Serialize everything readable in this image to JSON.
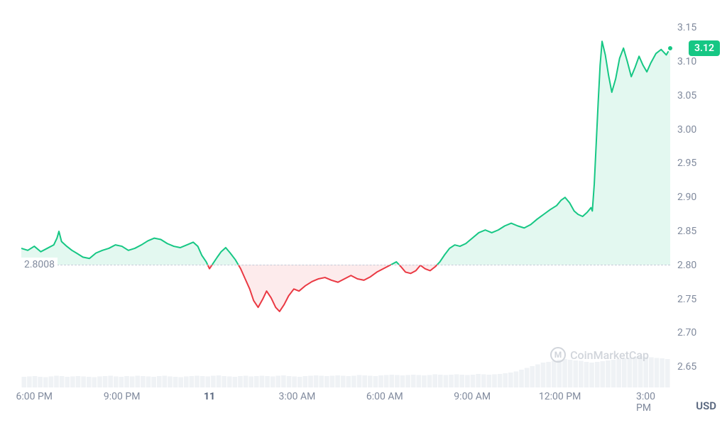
{
  "chart": {
    "type": "line",
    "baseline_value": 2.8008,
    "baseline_label": "2.8008",
    "current_value": 3.12,
    "current_label": "3.12",
    "y_axis": {
      "min": 2.62,
      "max": 3.17,
      "ticks": [
        2.65,
        2.7,
        2.75,
        2.8,
        2.85,
        2.9,
        2.95,
        3.0,
        3.05,
        3.1,
        3.15
      ],
      "labels": [
        "2.65",
        "2.70",
        "2.75",
        "2.80",
        "2.85",
        "2.90",
        "2.95",
        "3.00",
        "3.05",
        "3.10",
        "3.15"
      ]
    },
    "x_axis": {
      "labels": [
        "6:00 PM",
        "9:00 PM",
        "11",
        "3:00 AM",
        "6:00 AM",
        "9:00 AM",
        "12:00 PM",
        "3:00 PM"
      ],
      "positions": [
        0.02,
        0.155,
        0.29,
        0.425,
        0.56,
        0.695,
        0.83,
        0.965
      ]
    },
    "currency": "USD",
    "colors": {
      "up_line": "#16c784",
      "down_line": "#ea3943",
      "up_fill": "rgba(22,199,132,0.12)",
      "down_fill": "rgba(234,57,67,0.10)",
      "baseline": "#c4cbd7",
      "volume_bar": "#eff2f5",
      "axis_text": "#808a9d",
      "badge_bg": "#16c784",
      "badge_text": "#ffffff",
      "watermark": "#d1d5db",
      "background": "#ffffff"
    },
    "line_width": 2,
    "data": [
      {
        "x": 0.0,
        "y": 2.825
      },
      {
        "x": 0.01,
        "y": 2.822
      },
      {
        "x": 0.02,
        "y": 2.828
      },
      {
        "x": 0.03,
        "y": 2.82
      },
      {
        "x": 0.04,
        "y": 2.825
      },
      {
        "x": 0.05,
        "y": 2.83
      },
      {
        "x": 0.055,
        "y": 2.84
      },
      {
        "x": 0.058,
        "y": 2.85
      },
      {
        "x": 0.062,
        "y": 2.835
      },
      {
        "x": 0.07,
        "y": 2.828
      },
      {
        "x": 0.078,
        "y": 2.822
      },
      {
        "x": 0.085,
        "y": 2.818
      },
      {
        "x": 0.095,
        "y": 2.812
      },
      {
        "x": 0.105,
        "y": 2.81
      },
      {
        "x": 0.115,
        "y": 2.818
      },
      {
        "x": 0.125,
        "y": 2.822
      },
      {
        "x": 0.135,
        "y": 2.825
      },
      {
        "x": 0.145,
        "y": 2.83
      },
      {
        "x": 0.155,
        "y": 2.828
      },
      {
        "x": 0.165,
        "y": 2.822
      },
      {
        "x": 0.175,
        "y": 2.825
      },
      {
        "x": 0.185,
        "y": 2.83
      },
      {
        "x": 0.195,
        "y": 2.836
      },
      {
        "x": 0.205,
        "y": 2.84
      },
      {
        "x": 0.215,
        "y": 2.838
      },
      {
        "x": 0.225,
        "y": 2.832
      },
      {
        "x": 0.235,
        "y": 2.828
      },
      {
        "x": 0.245,
        "y": 2.826
      },
      {
        "x": 0.255,
        "y": 2.83
      },
      {
        "x": 0.265,
        "y": 2.834
      },
      {
        "x": 0.272,
        "y": 2.828
      },
      {
        "x": 0.278,
        "y": 2.815
      },
      {
        "x": 0.285,
        "y": 2.805
      },
      {
        "x": 0.29,
        "y": 2.795
      },
      {
        "x": 0.295,
        "y": 2.802
      },
      {
        "x": 0.302,
        "y": 2.812
      },
      {
        "x": 0.308,
        "y": 2.82
      },
      {
        "x": 0.315,
        "y": 2.826
      },
      {
        "x": 0.322,
        "y": 2.818
      },
      {
        "x": 0.33,
        "y": 2.808
      },
      {
        "x": 0.338,
        "y": 2.795
      },
      {
        "x": 0.345,
        "y": 2.78
      },
      {
        "x": 0.352,
        "y": 2.765
      },
      {
        "x": 0.358,
        "y": 2.748
      },
      {
        "x": 0.365,
        "y": 2.738
      },
      {
        "x": 0.372,
        "y": 2.75
      },
      {
        "x": 0.378,
        "y": 2.762
      },
      {
        "x": 0.385,
        "y": 2.752
      },
      {
        "x": 0.392,
        "y": 2.738
      },
      {
        "x": 0.398,
        "y": 2.732
      },
      {
        "x": 0.405,
        "y": 2.742
      },
      {
        "x": 0.412,
        "y": 2.755
      },
      {
        "x": 0.42,
        "y": 2.765
      },
      {
        "x": 0.428,
        "y": 2.762
      },
      {
        "x": 0.438,
        "y": 2.77
      },
      {
        "x": 0.448,
        "y": 2.776
      },
      {
        "x": 0.458,
        "y": 2.78
      },
      {
        "x": 0.468,
        "y": 2.782
      },
      {
        "x": 0.478,
        "y": 2.778
      },
      {
        "x": 0.488,
        "y": 2.775
      },
      {
        "x": 0.498,
        "y": 2.78
      },
      {
        "x": 0.508,
        "y": 2.785
      },
      {
        "x": 0.518,
        "y": 2.78
      },
      {
        "x": 0.528,
        "y": 2.778
      },
      {
        "x": 0.538,
        "y": 2.783
      },
      {
        "x": 0.548,
        "y": 2.79
      },
      {
        "x": 0.558,
        "y": 2.795
      },
      {
        "x": 0.568,
        "y": 2.8
      },
      {
        "x": 0.578,
        "y": 2.805
      },
      {
        "x": 0.585,
        "y": 2.798
      },
      {
        "x": 0.592,
        "y": 2.79
      },
      {
        "x": 0.6,
        "y": 2.788
      },
      {
        "x": 0.608,
        "y": 2.792
      },
      {
        "x": 0.615,
        "y": 2.8
      },
      {
        "x": 0.622,
        "y": 2.795
      },
      {
        "x": 0.63,
        "y": 2.792
      },
      {
        "x": 0.638,
        "y": 2.798
      },
      {
        "x": 0.645,
        "y": 2.805
      },
      {
        "x": 0.652,
        "y": 2.815
      },
      {
        "x": 0.66,
        "y": 2.825
      },
      {
        "x": 0.668,
        "y": 2.83
      },
      {
        "x": 0.676,
        "y": 2.828
      },
      {
        "x": 0.685,
        "y": 2.832
      },
      {
        "x": 0.695,
        "y": 2.84
      },
      {
        "x": 0.705,
        "y": 2.848
      },
      {
        "x": 0.715,
        "y": 2.852
      },
      {
        "x": 0.725,
        "y": 2.848
      },
      {
        "x": 0.735,
        "y": 2.852
      },
      {
        "x": 0.745,
        "y": 2.858
      },
      {
        "x": 0.755,
        "y": 2.862
      },
      {
        "x": 0.765,
        "y": 2.858
      },
      {
        "x": 0.775,
        "y": 2.855
      },
      {
        "x": 0.785,
        "y": 2.86
      },
      {
        "x": 0.795,
        "y": 2.868
      },
      {
        "x": 0.805,
        "y": 2.875
      },
      {
        "x": 0.815,
        "y": 2.882
      },
      {
        "x": 0.825,
        "y": 2.888
      },
      {
        "x": 0.832,
        "y": 2.896
      },
      {
        "x": 0.838,
        "y": 2.9
      },
      {
        "x": 0.845,
        "y": 2.892
      },
      {
        "x": 0.852,
        "y": 2.88
      },
      {
        "x": 0.858,
        "y": 2.875
      },
      {
        "x": 0.865,
        "y": 2.872
      },
      {
        "x": 0.872,
        "y": 2.878
      },
      {
        "x": 0.878,
        "y": 2.885
      },
      {
        "x": 0.88,
        "y": 2.88
      },
      {
        "x": 0.883,
        "y": 2.92
      },
      {
        "x": 0.886,
        "y": 2.98
      },
      {
        "x": 0.889,
        "y": 3.04
      },
      {
        "x": 0.892,
        "y": 3.095
      },
      {
        "x": 0.895,
        "y": 3.13
      },
      {
        "x": 0.9,
        "y": 3.11
      },
      {
        "x": 0.905,
        "y": 3.08
      },
      {
        "x": 0.91,
        "y": 3.055
      },
      {
        "x": 0.916,
        "y": 3.075
      },
      {
        "x": 0.922,
        "y": 3.105
      },
      {
        "x": 0.928,
        "y": 3.12
      },
      {
        "x": 0.934,
        "y": 3.1
      },
      {
        "x": 0.94,
        "y": 3.078
      },
      {
        "x": 0.946,
        "y": 3.092
      },
      {
        "x": 0.952,
        "y": 3.108
      },
      {
        "x": 0.958,
        "y": 3.095
      },
      {
        "x": 0.964,
        "y": 3.085
      },
      {
        "x": 0.97,
        "y": 3.098
      },
      {
        "x": 0.978,
        "y": 3.112
      },
      {
        "x": 0.986,
        "y": 3.118
      },
      {
        "x": 0.994,
        "y": 3.11
      },
      {
        "x": 1.0,
        "y": 3.12
      }
    ],
    "volume": [
      0.3,
      0.31,
      0.32,
      0.3,
      0.29,
      0.31,
      0.33,
      0.32,
      0.3,
      0.31,
      0.32,
      0.31,
      0.3,
      0.29,
      0.31,
      0.32,
      0.33,
      0.31,
      0.3,
      0.32,
      0.31,
      0.33,
      0.32,
      0.31,
      0.3,
      0.32,
      0.33,
      0.31,
      0.3,
      0.29,
      0.31,
      0.32,
      0.33,
      0.32,
      0.31,
      0.33,
      0.34,
      0.32,
      0.31,
      0.3,
      0.32,
      0.33,
      0.31,
      0.32,
      0.33,
      0.32,
      0.31,
      0.33,
      0.34,
      0.32,
      0.31,
      0.3,
      0.32,
      0.33,
      0.34,
      0.33,
      0.32,
      0.33,
      0.34,
      0.33,
      0.32,
      0.33,
      0.35,
      0.34,
      0.33,
      0.32,
      0.34,
      0.35,
      0.36,
      0.35,
      0.34,
      0.35,
      0.36,
      0.35,
      0.34,
      0.35,
      0.37,
      0.36,
      0.35,
      0.36,
      0.37,
      0.36,
      0.35,
      0.36,
      0.38,
      0.37,
      0.36,
      0.37,
      0.38,
      0.4,
      0.42,
      0.45,
      0.5,
      0.55,
      0.6,
      0.65,
      0.7,
      0.72,
      0.75,
      0.78,
      0.8,
      0.78,
      0.76,
      0.75,
      0.72,
      0.7,
      0.72,
      0.74,
      0.76,
      0.78,
      0.8,
      0.82,
      0.84,
      0.86,
      0.88,
      0.87,
      0.85,
      0.83,
      0.82,
      0.8
    ]
  },
  "watermark": {
    "text": "CoinMarketCap",
    "icon_letter": "M"
  }
}
